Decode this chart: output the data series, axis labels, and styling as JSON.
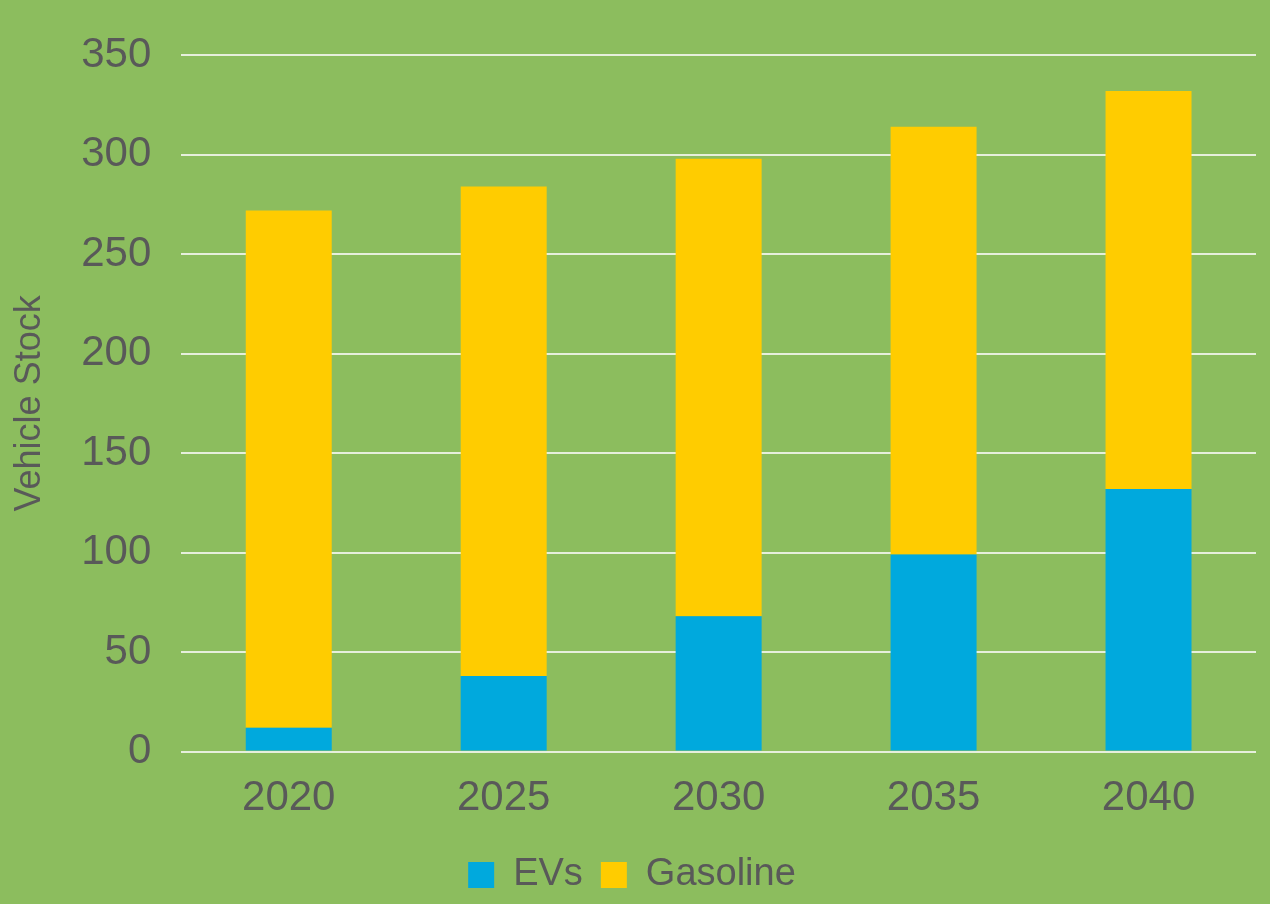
{
  "chart_data": {
    "type": "bar",
    "ylabel": "Vehicle Stock",
    "categories": [
      "2020",
      "2025",
      "2030",
      "2035",
      "2040"
    ],
    "series": [
      {
        "name": "EVs",
        "color": "#00a9dd",
        "values": [
          12,
          38,
          68,
          99,
          132
        ]
      },
      {
        "name": "Gasoline",
        "color": "#ffcc00",
        "values": [
          260,
          246,
          230,
          215,
          200
        ]
      }
    ],
    "stacked": true,
    "ylim": [
      0,
      350
    ],
    "yticks": [
      0,
      50,
      100,
      150,
      200,
      250,
      300,
      350
    ],
    "grid": "y",
    "legend": "bottom"
  }
}
